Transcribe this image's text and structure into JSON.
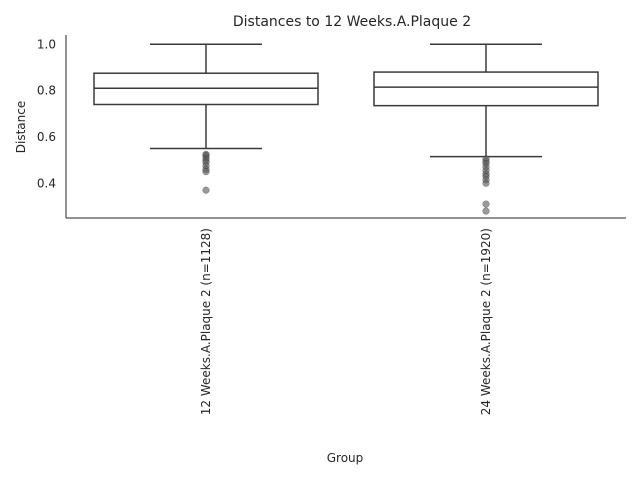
{
  "chart_data": {
    "type": "box",
    "title": "Distances to 12 Weeks.A.Plaque 2",
    "xlabel": "Group",
    "ylabel": "Distance",
    "ylim": [
      0.25,
      1.04
    ],
    "yticks": [
      "0.4",
      "0.6",
      "0.8",
      "1.0"
    ],
    "grid": false,
    "categories": [
      "12 Weeks.A.Plaque 2 (n=1128)",
      "24 Weeks.A.Plaque 2 (n=1920)"
    ],
    "boxes": [
      {
        "whisker_low": 0.55,
        "q1": 0.74,
        "median": 0.81,
        "q3": 0.875,
        "whisker_high": 1.0,
        "outliers": [
          0.525,
          0.52,
          0.51,
          0.5,
          0.49,
          0.475,
          0.46,
          0.45,
          0.37
        ]
      },
      {
        "whisker_low": 0.515,
        "q1": 0.735,
        "median": 0.815,
        "q3": 0.88,
        "whisker_high": 1.0,
        "outliers": [
          0.505,
          0.495,
          0.485,
          0.47,
          0.455,
          0.44,
          0.43,
          0.415,
          0.4,
          0.31,
          0.28
        ]
      }
    ]
  }
}
